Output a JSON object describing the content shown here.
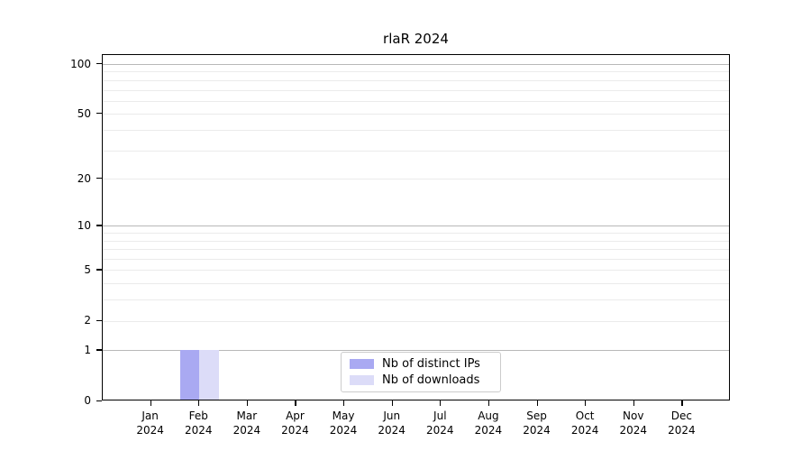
{
  "title": "rlaR 2024",
  "chart_data": {
    "type": "bar",
    "title": "rlaR 2024",
    "months": [
      "Jan",
      "Feb",
      "Mar",
      "Apr",
      "May",
      "Jun",
      "Jul",
      "Aug",
      "Sep",
      "Oct",
      "Nov",
      "Dec"
    ],
    "year": "2024",
    "categories": [
      "Jan 2024",
      "Feb 2024",
      "Mar 2024",
      "Apr 2024",
      "May 2024",
      "Jun 2024",
      "Jul 2024",
      "Aug 2024",
      "Sep 2024",
      "Oct 2024",
      "Nov 2024",
      "Dec 2024"
    ],
    "series": [
      {
        "name": "Nb of distinct IPs",
        "color": "#a9a9f2",
        "values": [
          0,
          1,
          0,
          0,
          0,
          0,
          0,
          0,
          0,
          0,
          0,
          0
        ]
      },
      {
        "name": "Nb of downloads",
        "color": "#dcdcf8",
        "values": [
          0,
          1,
          0,
          0,
          0,
          0,
          0,
          0,
          0,
          0,
          0,
          0
        ]
      }
    ],
    "yscale": "log1p",
    "ylim": [
      0,
      113.3
    ],
    "ytick_values": [
      100,
      50,
      20,
      10,
      5,
      2,
      1,
      0
    ],
    "ytick_labels": [
      "100",
      "50",
      "20",
      "10",
      "5",
      "2",
      "1",
      "0"
    ],
    "major_grid_values": [
      1,
      10,
      100
    ],
    "minor_grid_values": [
      2,
      3,
      4,
      5,
      6,
      7,
      8,
      9,
      20,
      30,
      40,
      50,
      60,
      70,
      80,
      90
    ],
    "grid": "horizontal",
    "legend_position": "lower center",
    "colors": {
      "major_grid": "#b8b8b8",
      "minor_grid": "#ebebeb",
      "axis": "#000000",
      "background": "#ffffff"
    }
  }
}
